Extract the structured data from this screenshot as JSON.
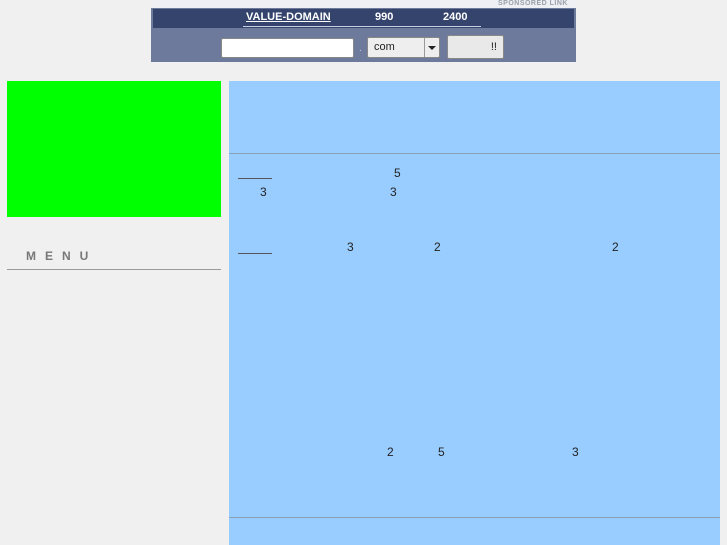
{
  "banner": {
    "sponsored_label": "SPONSORED LINK",
    "brand": "VALUE-DOMAIN",
    "price1": "990",
    "price2": "2400",
    "domain_input_value": "",
    "dot": ".",
    "tld_selected": "com",
    "submit_label": "!!"
  },
  "sidebar": {
    "menu_label": "MENU",
    "image_color": "#00ff00"
  },
  "main": {
    "background": "#99ccff",
    "row1": [
      "5",
      "3",
      "3"
    ],
    "row2": [
      "3",
      "2",
      "2"
    ],
    "row3": [
      "2",
      "5",
      "3"
    ]
  }
}
